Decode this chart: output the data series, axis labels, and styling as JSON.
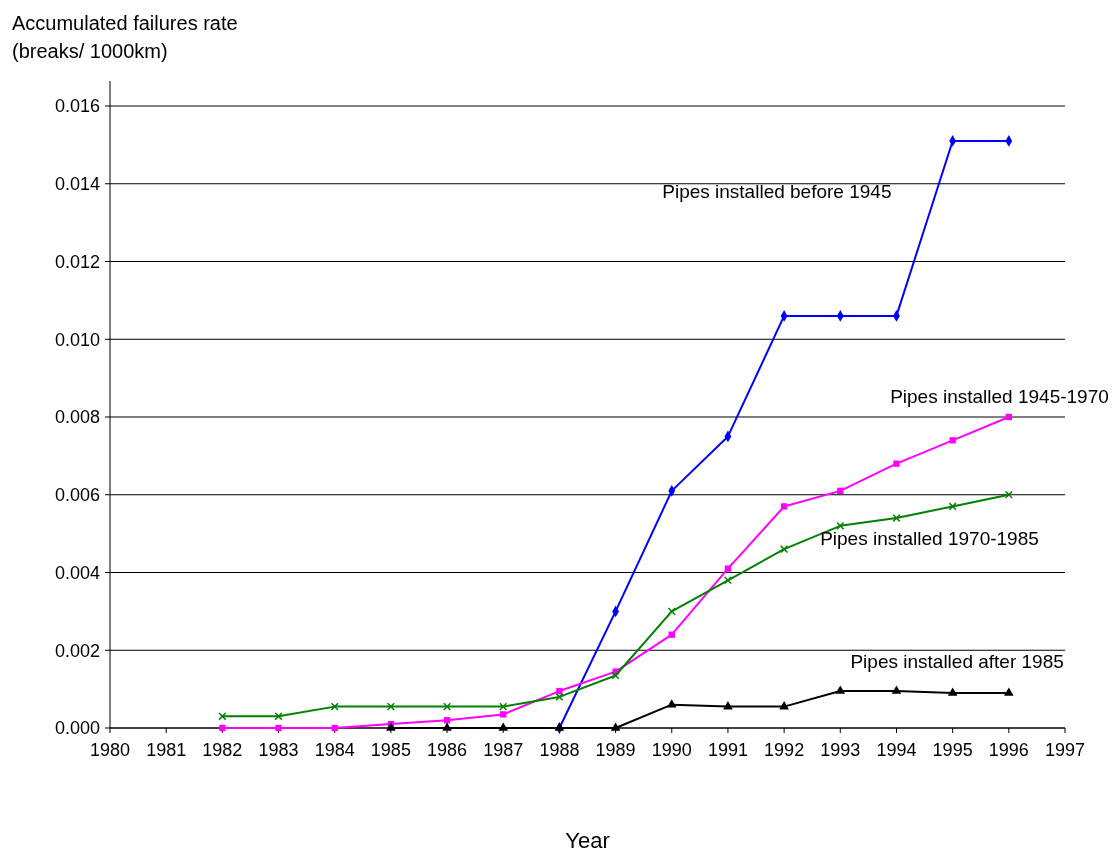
{
  "chart_data": {
    "type": "line",
    "ylabel": "Accumulated failures rate\n(breaks/ 1000km)",
    "xlabel": "Year",
    "x": [
      1982,
      1983,
      1984,
      1985,
      1986,
      1987,
      1988,
      1989,
      1990,
      1991,
      1992,
      1993,
      1994,
      1995,
      1996
    ],
    "xlim": [
      1980,
      1997
    ],
    "xticks": [
      1980,
      1981,
      1982,
      1983,
      1984,
      1985,
      1986,
      1987,
      1988,
      1989,
      1990,
      1991,
      1992,
      1993,
      1994,
      1995,
      1996,
      1997
    ],
    "ylim": [
      0,
      0.016
    ],
    "yticks": [
      {
        "value": 0,
        "label": "0.000"
      },
      {
        "value": 0.002,
        "label": "0.002"
      },
      {
        "value": 0.004,
        "label": "0.004"
      },
      {
        "value": 0.006,
        "label": "0.006"
      },
      {
        "value": 0.008,
        "label": "0.008"
      },
      {
        "value": 0.01,
        "label": "0.010"
      },
      {
        "value": 0.012,
        "label": "0.012"
      },
      {
        "value": 0.014,
        "label": "0.014"
      },
      {
        "value": 0.016,
        "label": "0.016"
      }
    ],
    "grid": "y",
    "series": [
      {
        "name": "Pipes installed before 1945",
        "color": "#0000ff",
        "marker": "diamond",
        "values": [
          null,
          null,
          null,
          null,
          null,
          null,
          0,
          0.003,
          0.0061,
          0.0075,
          0.0106,
          0.0106,
          0.0106,
          0.0151,
          0.0151
        ]
      },
      {
        "name": "Pipes installed 1945-1970",
        "color": "#ff00ff",
        "marker": "square",
        "values": [
          0,
          0,
          0,
          0.0001,
          0.0002,
          0.00035,
          0.00095,
          0.00145,
          0.0024,
          0.0041,
          0.0057,
          0.0061,
          0.0068,
          0.0074,
          0.008
        ]
      },
      {
        "name": "Pipes installed 1970-1985",
        "color": "#008000",
        "marker": "cross",
        "values": [
          0.0003,
          0.0003,
          0.00055,
          0.00055,
          0.00055,
          0.00055,
          0.0008,
          0.00135,
          0.003,
          0.0038,
          0.0046,
          0.0052,
          0.0054,
          0.0057,
          0.006
        ]
      },
      {
        "name": "Pipes installed after 1985",
        "color": "#000000",
        "marker": "triangle",
        "values": [
          null,
          null,
          null,
          0,
          0,
          0,
          0,
          0,
          0.0006,
          0.00055,
          0.00055,
          0.00095,
          0.00095,
          0.0009,
          0.0009
        ]
      }
    ]
  }
}
